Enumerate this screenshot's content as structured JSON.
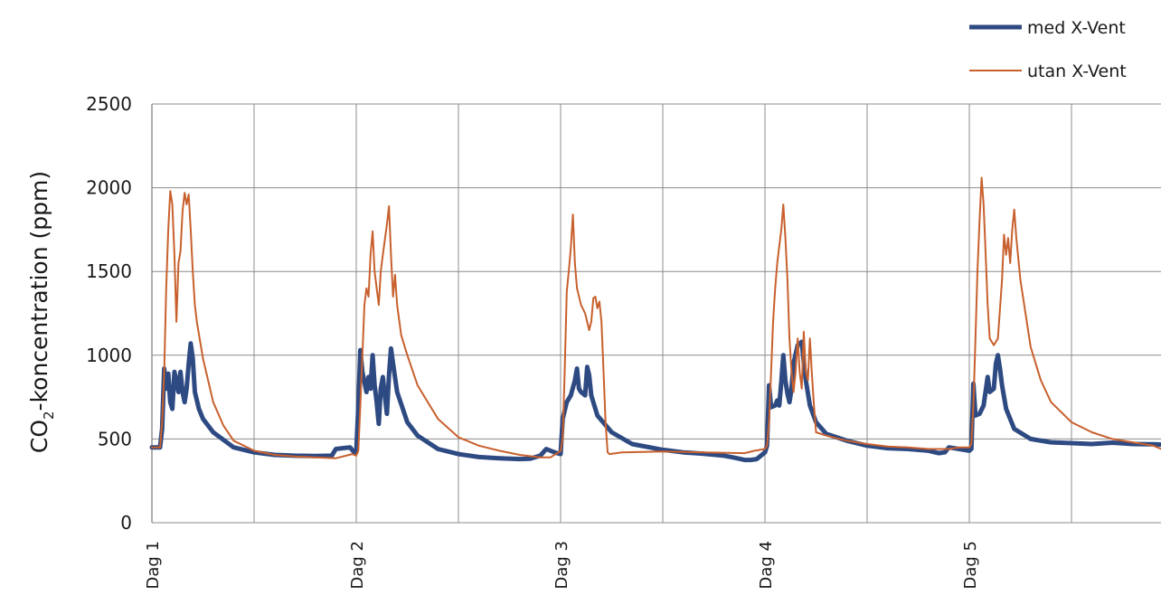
{
  "chart_data": {
    "type": "line",
    "title": "",
    "xlabel": "",
    "ylabel_main": "CO",
    "ylabel_sub": "2",
    "ylabel_rest": "-koncentration (ppm)",
    "ylim": [
      0,
      2500
    ],
    "y_ticks": [
      "0",
      "500",
      "1000",
      "1500",
      "2000",
      "2500"
    ],
    "x_ticks": [
      {
        "label": "Dag 1",
        "day": 0
      },
      {
        "label": "Dag 2",
        "day": 1
      },
      {
        "label": "Dag 3",
        "day": 2
      },
      {
        "label": "Dag 4",
        "day": 3
      },
      {
        "label": "Dag 5",
        "day": 4
      }
    ],
    "xlim_days": [
      0,
      4.96
    ],
    "grid": true,
    "legend_position": "top-right",
    "series": [
      {
        "name": "med X-Vent",
        "color": "#2e4a82",
        "points": [
          [
            0.0,
            450
          ],
          [
            0.04,
            450
          ],
          [
            0.05,
            560
          ],
          [
            0.06,
            920
          ],
          [
            0.07,
            800
          ],
          [
            0.08,
            890
          ],
          [
            0.09,
            720
          ],
          [
            0.1,
            680
          ],
          [
            0.11,
            900
          ],
          [
            0.12,
            850
          ],
          [
            0.13,
            780
          ],
          [
            0.14,
            900
          ],
          [
            0.15,
            780
          ],
          [
            0.16,
            720
          ],
          [
            0.17,
            800
          ],
          [
            0.18,
            950
          ],
          [
            0.19,
            1070
          ],
          [
            0.2,
            980
          ],
          [
            0.21,
            780
          ],
          [
            0.23,
            680
          ],
          [
            0.25,
            620
          ],
          [
            0.3,
            540
          ],
          [
            0.4,
            450
          ],
          [
            0.5,
            420
          ],
          [
            0.6,
            405
          ],
          [
            0.7,
            400
          ],
          [
            0.8,
            398
          ],
          [
            0.88,
            400
          ],
          [
            0.9,
            440
          ],
          [
            0.97,
            450
          ],
          [
            0.99,
            420
          ],
          [
            1.0,
            420
          ],
          [
            1.01,
            700
          ],
          [
            1.02,
            1030
          ],
          [
            1.03,
            900
          ],
          [
            1.04,
            840
          ],
          [
            1.05,
            780
          ],
          [
            1.06,
            870
          ],
          [
            1.07,
            800
          ],
          [
            1.08,
            1000
          ],
          [
            1.09,
            820
          ],
          [
            1.1,
            720
          ],
          [
            1.11,
            590
          ],
          [
            1.12,
            800
          ],
          [
            1.13,
            870
          ],
          [
            1.14,
            760
          ],
          [
            1.15,
            650
          ],
          [
            1.16,
            880
          ],
          [
            1.17,
            1040
          ],
          [
            1.18,
            950
          ],
          [
            1.2,
            780
          ],
          [
            1.25,
            600
          ],
          [
            1.3,
            520
          ],
          [
            1.4,
            440
          ],
          [
            1.5,
            410
          ],
          [
            1.6,
            392
          ],
          [
            1.7,
            385
          ],
          [
            1.8,
            380
          ],
          [
            1.85,
            382
          ],
          [
            1.9,
            400
          ],
          [
            1.93,
            440
          ],
          [
            1.97,
            420
          ],
          [
            2.0,
            410
          ],
          [
            2.01,
            620
          ],
          [
            2.03,
            720
          ],
          [
            2.05,
            760
          ],
          [
            2.07,
            850
          ],
          [
            2.08,
            920
          ],
          [
            2.09,
            800
          ],
          [
            2.1,
            780
          ],
          [
            2.12,
            760
          ],
          [
            2.13,
            930
          ],
          [
            2.14,
            880
          ],
          [
            2.15,
            760
          ],
          [
            2.18,
            640
          ],
          [
            2.25,
            540
          ],
          [
            2.35,
            470
          ],
          [
            2.5,
            435
          ],
          [
            2.6,
            420
          ],
          [
            2.7,
            412
          ],
          [
            2.8,
            400
          ],
          [
            2.85,
            388
          ],
          [
            2.9,
            375
          ],
          [
            2.93,
            375
          ],
          [
            2.96,
            380
          ],
          [
            3.0,
            420
          ],
          [
            3.01,
            460
          ],
          [
            3.02,
            820
          ],
          [
            3.03,
            690
          ],
          [
            3.05,
            700
          ],
          [
            3.06,
            730
          ],
          [
            3.07,
            700
          ],
          [
            3.08,
            840
          ],
          [
            3.09,
            1000
          ],
          [
            3.1,
            850
          ],
          [
            3.11,
            770
          ],
          [
            3.12,
            720
          ],
          [
            3.13,
            800
          ],
          [
            3.14,
            950
          ],
          [
            3.16,
            1060
          ],
          [
            3.18,
            1080
          ],
          [
            3.19,
            960
          ],
          [
            3.2,
            850
          ],
          [
            3.22,
            700
          ],
          [
            3.25,
            600
          ],
          [
            3.3,
            530
          ],
          [
            3.4,
            490
          ],
          [
            3.5,
            460
          ],
          [
            3.6,
            445
          ],
          [
            3.7,
            440
          ],
          [
            3.8,
            430
          ],
          [
            3.85,
            415
          ],
          [
            3.88,
            420
          ],
          [
            3.9,
            450
          ],
          [
            3.95,
            440
          ],
          [
            4.0,
            430
          ],
          [
            4.01,
            440
          ],
          [
            4.02,
            830
          ],
          [
            4.03,
            640
          ],
          [
            4.05,
            650
          ],
          [
            4.07,
            700
          ],
          [
            4.09,
            870
          ],
          [
            4.1,
            780
          ],
          [
            4.12,
            800
          ],
          [
            4.13,
            950
          ],
          [
            4.14,
            1000
          ],
          [
            4.15,
            920
          ],
          [
            4.16,
            820
          ],
          [
            4.18,
            680
          ],
          [
            4.22,
            560
          ],
          [
            4.3,
            500
          ],
          [
            4.4,
            480
          ],
          [
            4.5,
            475
          ],
          [
            4.6,
            470
          ],
          [
            4.7,
            478
          ],
          [
            4.8,
            470
          ],
          [
            4.9,
            468
          ],
          [
            4.96,
            465
          ]
        ]
      },
      {
        "name": "utan X-Vent",
        "color": "#c8602d",
        "points": [
          [
            0.0,
            450
          ],
          [
            0.04,
            450
          ],
          [
            0.05,
            600
          ],
          [
            0.06,
            900
          ],
          [
            0.07,
            1400
          ],
          [
            0.08,
            1750
          ],
          [
            0.09,
            1980
          ],
          [
            0.1,
            1900
          ],
          [
            0.11,
            1600
          ],
          [
            0.12,
            1200
          ],
          [
            0.13,
            1550
          ],
          [
            0.14,
            1620
          ],
          [
            0.15,
            1860
          ],
          [
            0.16,
            1970
          ],
          [
            0.17,
            1900
          ],
          [
            0.18,
            1960
          ],
          [
            0.19,
            1750
          ],
          [
            0.2,
            1500
          ],
          [
            0.21,
            1300
          ],
          [
            0.22,
            1200
          ],
          [
            0.25,
            980
          ],
          [
            0.3,
            720
          ],
          [
            0.35,
            580
          ],
          [
            0.4,
            490
          ],
          [
            0.5,
            430
          ],
          [
            0.6,
            405
          ],
          [
            0.7,
            395
          ],
          [
            0.8,
            390
          ],
          [
            0.9,
            385
          ],
          [
            0.95,
            400
          ],
          [
            0.98,
            410
          ],
          [
            1.0,
            400
          ],
          [
            1.01,
            430
          ],
          [
            1.02,
            700
          ],
          [
            1.03,
            1000
          ],
          [
            1.04,
            1300
          ],
          [
            1.05,
            1400
          ],
          [
            1.06,
            1350
          ],
          [
            1.07,
            1600
          ],
          [
            1.08,
            1740
          ],
          [
            1.09,
            1500
          ],
          [
            1.1,
            1400
          ],
          [
            1.11,
            1300
          ],
          [
            1.12,
            1500
          ],
          [
            1.13,
            1600
          ],
          [
            1.15,
            1780
          ],
          [
            1.16,
            1890
          ],
          [
            1.17,
            1600
          ],
          [
            1.18,
            1350
          ],
          [
            1.19,
            1480
          ],
          [
            1.2,
            1300
          ],
          [
            1.22,
            1120
          ],
          [
            1.25,
            1000
          ],
          [
            1.3,
            820
          ],
          [
            1.4,
            620
          ],
          [
            1.5,
            510
          ],
          [
            1.6,
            460
          ],
          [
            1.7,
            430
          ],
          [
            1.8,
            405
          ],
          [
            1.9,
            390
          ],
          [
            1.95,
            390
          ],
          [
            1.99,
            420
          ],
          [
            2.0,
            430
          ],
          [
            2.01,
            500
          ],
          [
            2.02,
            900
          ],
          [
            2.03,
            1380
          ],
          [
            2.04,
            1500
          ],
          [
            2.05,
            1640
          ],
          [
            2.06,
            1840
          ],
          [
            2.07,
            1550
          ],
          [
            2.08,
            1400
          ],
          [
            2.1,
            1300
          ],
          [
            2.12,
            1250
          ],
          [
            2.14,
            1150
          ],
          [
            2.15,
            1200
          ],
          [
            2.16,
            1340
          ],
          [
            2.17,
            1350
          ],
          [
            2.18,
            1280
          ],
          [
            2.19,
            1320
          ],
          [
            2.2,
            1200
          ],
          [
            2.21,
            900
          ],
          [
            2.22,
            600
          ],
          [
            2.23,
            420
          ],
          [
            2.24,
            410
          ],
          [
            2.3,
            420
          ],
          [
            2.5,
            425
          ],
          [
            2.7,
            420
          ],
          [
            2.9,
            415
          ],
          [
            2.95,
            430
          ],
          [
            3.0,
            440
          ],
          [
            3.01,
            460
          ],
          [
            3.02,
            600
          ],
          [
            3.03,
            900
          ],
          [
            3.04,
            1200
          ],
          [
            3.05,
            1400
          ],
          [
            3.06,
            1550
          ],
          [
            3.07,
            1650
          ],
          [
            3.08,
            1750
          ],
          [
            3.09,
            1900
          ],
          [
            3.1,
            1700
          ],
          [
            3.11,
            1450
          ],
          [
            3.12,
            1100
          ],
          [
            3.13,
            900
          ],
          [
            3.14,
            780
          ],
          [
            3.15,
            900
          ],
          [
            3.16,
            1100
          ],
          [
            3.17,
            900
          ],
          [
            3.18,
            800
          ],
          [
            3.19,
            1140
          ],
          [
            3.2,
            900
          ],
          [
            3.21,
            850
          ],
          [
            3.22,
            1100
          ],
          [
            3.23,
            880
          ],
          [
            3.24,
            700
          ],
          [
            3.25,
            540
          ],
          [
            3.3,
            520
          ],
          [
            3.4,
            490
          ],
          [
            3.5,
            470
          ],
          [
            3.6,
            455
          ],
          [
            3.7,
            450
          ],
          [
            3.8,
            440
          ],
          [
            3.9,
            440
          ],
          [
            3.95,
            450
          ],
          [
            4.0,
            450
          ],
          [
            4.01,
            470
          ],
          [
            4.02,
            700
          ],
          [
            4.03,
            1100
          ],
          [
            4.04,
            1500
          ],
          [
            4.05,
            1800
          ],
          [
            4.06,
            2060
          ],
          [
            4.07,
            1900
          ],
          [
            4.08,
            1600
          ],
          [
            4.09,
            1300
          ],
          [
            4.1,
            1100
          ],
          [
            4.12,
            1060
          ],
          [
            4.14,
            1100
          ],
          [
            4.16,
            1450
          ],
          [
            4.17,
            1720
          ],
          [
            4.18,
            1600
          ],
          [
            4.19,
            1700
          ],
          [
            4.2,
            1550
          ],
          [
            4.21,
            1750
          ],
          [
            4.22,
            1870
          ],
          [
            4.23,
            1700
          ],
          [
            4.25,
            1450
          ],
          [
            4.3,
            1050
          ],
          [
            4.35,
            850
          ],
          [
            4.4,
            720
          ],
          [
            4.5,
            600
          ],
          [
            4.6,
            540
          ],
          [
            4.7,
            500
          ],
          [
            4.8,
            480
          ],
          [
            4.9,
            460
          ],
          [
            4.96,
            430
          ]
        ]
      }
    ]
  }
}
